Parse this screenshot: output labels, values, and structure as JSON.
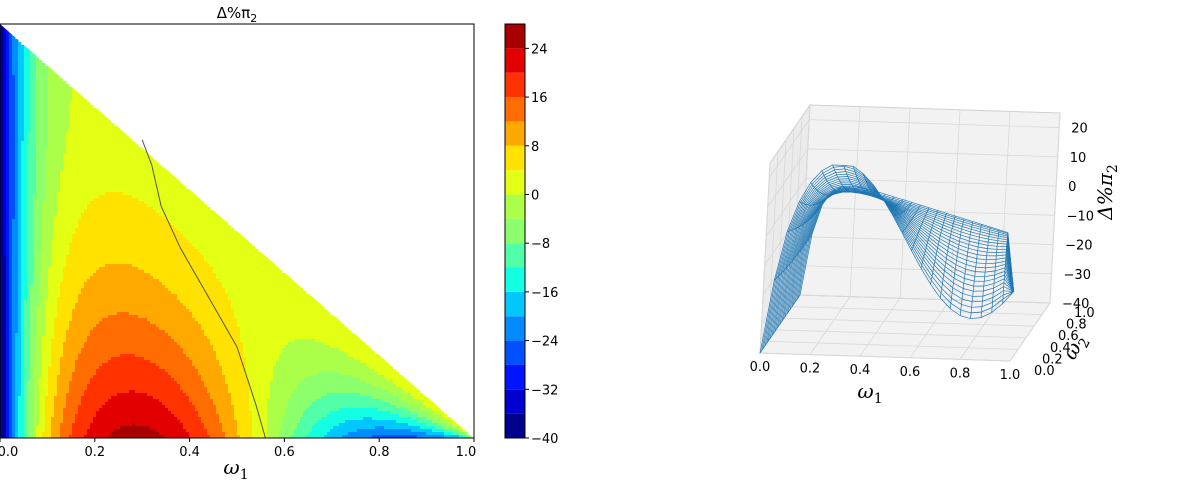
{
  "chart_data": [
    {
      "type": "contourf",
      "title": "Δ%π",
      "title_sub": "2",
      "xlabel": "ω",
      "xlabel_sub": "1",
      "xlim": [
        0.0,
        1.0
      ],
      "x_ticks": [
        "0.0",
        "0.2",
        "0.4",
        "0.6",
        "0.8",
        "1.0"
      ],
      "x_tick_values": [
        0.0,
        0.2,
        0.4,
        0.6,
        0.8,
        1.0
      ],
      "domain": "triangle ω1 + ω2 ≤ 1",
      "zero_contour": [
        [
          0.3,
          0.72
        ],
        [
          0.32,
          0.66
        ],
        [
          0.34,
          0.56
        ],
        [
          0.38,
          0.46
        ],
        [
          0.42,
          0.38
        ],
        [
          0.46,
          0.3
        ],
        [
          0.5,
          0.22
        ],
        [
          0.52,
          0.15
        ],
        [
          0.54,
          0.08
        ],
        [
          0.56,
          0.0
        ]
      ],
      "colorbar": {
        "levels": [
          -40,
          -36,
          -32,
          -28,
          -24,
          -20,
          -16,
          -12,
          -8,
          -4,
          0,
          4,
          8,
          12,
          16,
          20,
          24,
          28
        ],
        "tick_labels": [
          "−40",
          "−32",
          "−24",
          "−16",
          "−8",
          "0",
          "8",
          "16",
          "24"
        ],
        "tick_values": [
          -40,
          -32,
          -24,
          -16,
          -8,
          0,
          8,
          16,
          24
        ],
        "colors": [
          "#00008f",
          "#0000d0",
          "#0014ff",
          "#0050ff",
          "#008cff",
          "#00c8ff",
          "#14ffe2",
          "#50ffa8",
          "#8cff6c",
          "#acff48",
          "#e2ff14",
          "#ffe200",
          "#ffa800",
          "#ff6c00",
          "#ff3200",
          "#e20000",
          "#a80000"
        ],
        "colormap": "jet"
      }
    },
    {
      "type": "surface3d",
      "style": "wireframe",
      "wire_color": "#1f77b4",
      "xlabel": "ω",
      "xlabel_sub": "1",
      "ylabel": "ω",
      "ylabel_sub": "2",
      "zlabel": "Δ%π",
      "zlabel_sub": "2",
      "x_ticks": [
        "0.0",
        "0.2",
        "0.4",
        "0.6",
        "0.8",
        "1.0"
      ],
      "y_ticks": [
        "0.0",
        "0.2",
        "0.4",
        "0.6",
        "0.8",
        "1.0"
      ],
      "z_ticks": [
        "20",
        "10",
        "0",
        "−10",
        "−20",
        "−30",
        "−40"
      ],
      "xlim": [
        0.0,
        1.0
      ],
      "ylim": [
        0.0,
        1.0
      ],
      "zlim": [
        -40,
        25
      ]
    }
  ]
}
